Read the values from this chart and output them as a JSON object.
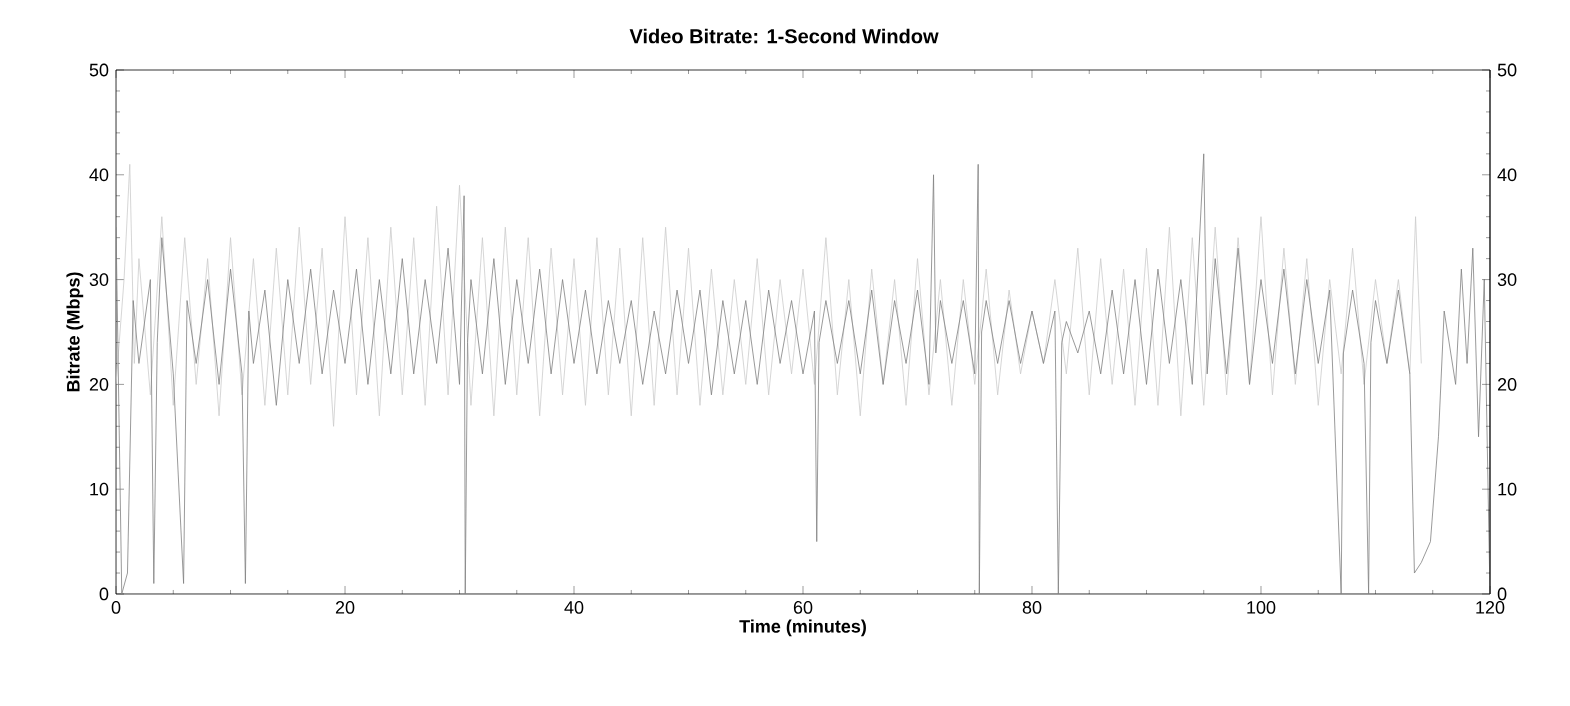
{
  "chart_data": {
    "type": "line",
    "title": "Video Bitrate: 1-Second Window",
    "xlabel": "Time (minutes)",
    "ylabel": "Bitrate (Mbps)",
    "xlim": [
      0,
      120
    ],
    "xticks": [
      0,
      20,
      40,
      60,
      80,
      100,
      120
    ],
    "ylim": [
      0,
      50
    ],
    "yticks": [
      0,
      10,
      20,
      30,
      40,
      50
    ],
    "y2lim": [
      0,
      50
    ],
    "y2ticks": [
      0,
      10,
      20,
      30,
      40,
      50
    ],
    "series": [
      {
        "color": "#cccccc",
        "x": [
          0,
          0.7,
          1.2,
          1.6,
          2,
          3,
          4,
          5,
          6,
          7,
          8,
          9,
          10,
          11,
          12,
          13,
          14,
          15,
          16,
          17,
          18,
          19,
          20,
          21,
          22,
          23,
          24,
          25,
          26,
          27,
          28,
          29,
          30,
          31,
          32,
          33,
          34,
          35,
          36,
          37,
          38,
          39,
          40,
          41,
          42,
          43,
          44,
          45,
          46,
          47,
          48,
          49,
          50,
          51,
          52,
          53,
          54,
          55,
          56,
          57,
          58,
          59,
          60,
          61,
          62,
          63,
          64,
          65,
          66,
          67,
          68,
          69,
          70,
          71,
          72,
          73,
          74,
          75,
          76,
          77,
          78,
          79,
          80,
          81,
          82,
          83,
          84,
          85,
          86,
          87,
          88,
          89,
          90,
          91,
          92,
          93,
          94,
          95,
          96,
          97,
          98,
          99,
          100,
          101,
          102,
          103,
          104,
          105,
          106,
          107,
          108,
          109,
          110,
          111,
          112,
          113,
          113.5,
          114
        ],
        "values": [
          20,
          30,
          41,
          22,
          32,
          19,
          36,
          18,
          34,
          20,
          32,
          17,
          34,
          19,
          32,
          18,
          33,
          19,
          35,
          20,
          33,
          16,
          36,
          19,
          34,
          17,
          35,
          19,
          34,
          18,
          37,
          19,
          39,
          18,
          34,
          17,
          35,
          19,
          34,
          17,
          33,
          19,
          32,
          18,
          34,
          19,
          33,
          17,
          34,
          18,
          35,
          19,
          33,
          18,
          31,
          19,
          30,
          20,
          32,
          19,
          30,
          21,
          31,
          20,
          34,
          19,
          30,
          17,
          31,
          20,
          30,
          18,
          32,
          19,
          30,
          18,
          30,
          20,
          31,
          19,
          29,
          21,
          27,
          22,
          30,
          21,
          33,
          19,
          32,
          20,
          31,
          18,
          33,
          18,
          35,
          17,
          34,
          18,
          35,
          19,
          34,
          20,
          36,
          19,
          33,
          20,
          32,
          18,
          30,
          21,
          33,
          20,
          30,
          22,
          30,
          21,
          36,
          22
        ]
      },
      {
        "color": "#808080",
        "x": [
          0,
          0.5,
          1,
          1.5,
          2,
          3,
          3.3,
          3.6,
          4,
          5,
          5.9,
          6.2,
          7,
          8,
          9,
          10,
          11,
          11.3,
          11.6,
          12,
          13,
          14,
          15,
          16,
          17,
          18,
          19,
          20,
          21,
          22,
          23,
          24,
          25,
          26,
          27,
          28,
          29,
          30,
          30.4,
          30.5,
          30.7,
          31,
          32,
          33,
          34,
          35,
          36,
          37,
          38,
          39,
          40,
          41,
          42,
          43,
          44,
          45,
          46,
          47,
          48,
          49,
          50,
          51,
          52,
          53,
          54,
          55,
          56,
          57,
          58,
          59,
          60,
          61,
          61.2,
          61.4,
          62,
          63,
          64,
          65,
          66,
          67,
          68,
          69,
          70,
          71,
          71.4,
          71.6,
          72,
          73,
          74,
          75,
          75.3,
          75.4,
          75.6,
          76,
          77,
          78,
          79,
          80,
          81,
          82,
          82.3,
          82.6,
          83,
          84,
          85,
          86,
          87,
          88,
          89,
          90,
          91,
          92,
          93,
          94,
          95,
          95.3,
          96,
          97,
          98,
          99,
          100,
          101,
          102,
          103,
          104,
          105,
          106,
          107,
          107.2,
          108,
          109,
          109.4,
          109.6,
          110,
          111,
          112,
          113,
          113.4,
          114,
          114.8,
          115.5,
          116,
          117,
          117.5,
          118,
          118.5,
          119,
          119.5,
          120
        ],
        "values": [
          35,
          0,
          2,
          28,
          22,
          30,
          1,
          24,
          34,
          21,
          1,
          28,
          22,
          30,
          20,
          31,
          21,
          1,
          27,
          22,
          29,
          18,
          30,
          22,
          31,
          21,
          29,
          22,
          31,
          20,
          30,
          21,
          32,
          21,
          30,
          22,
          33,
          20,
          38,
          0,
          24,
          30,
          21,
          32,
          20,
          30,
          22,
          31,
          21,
          30,
          22,
          29,
          21,
          28,
          22,
          28,
          20,
          27,
          21,
          29,
          22,
          29,
          19,
          28,
          21,
          28,
          20,
          29,
          22,
          28,
          21,
          27,
          5,
          24,
          28,
          22,
          28,
          21,
          29,
          20,
          28,
          22,
          29,
          20,
          40,
          23,
          28,
          22,
          28,
          21,
          41,
          0,
          25,
          28,
          22,
          28,
          22,
          27,
          22,
          27,
          0,
          24,
          26,
          23,
          27,
          21,
          29,
          21,
          30,
          20,
          31,
          22,
          30,
          20,
          42,
          21,
          32,
          21,
          33,
          20,
          30,
          22,
          31,
          21,
          30,
          22,
          29,
          0,
          23,
          29,
          22,
          0,
          24,
          28,
          22,
          29,
          21,
          2,
          3,
          5,
          15,
          27,
          20,
          31,
          22,
          33,
          15,
          30,
          0
        ]
      }
    ]
  }
}
